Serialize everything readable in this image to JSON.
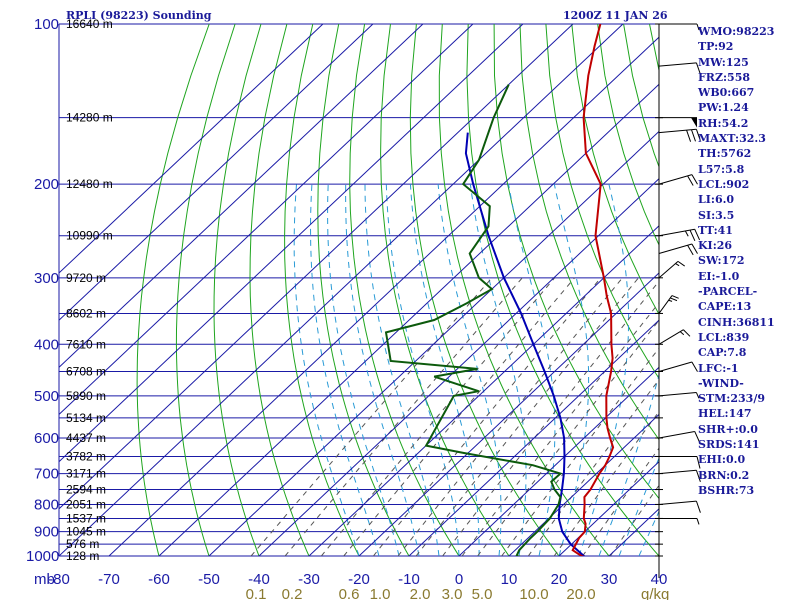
{
  "header": {
    "station": "RPLI (98223) Sounding",
    "time": "1200Z 11 JAN 26"
  },
  "colors": {
    "isobar": "#1a1aa6",
    "isotherm": "#1a1aa6",
    "dry_adiabat": "#1fa51f",
    "moist_adiabat": "#2a9bd6",
    "mixing_ratio": "#555555",
    "temperature": "#c00000",
    "dewpoint": "#0c5a0c",
    "parcel": "#0000b4",
    "wind": "#000000"
  },
  "chart_data": {
    "type": "skew-t",
    "title": "RPLI (98223) Sounding",
    "xlabel": "mb",
    "ylabel": "",
    "pressure_axis_mb": [
      100,
      200,
      300,
      400,
      500,
      600,
      700,
      800,
      900,
      1000
    ],
    "pressure_labels": [
      "100",
      "200",
      "300",
      "400",
      "500",
      "600",
      "700",
      "800",
      "900",
      "1000"
    ],
    "x_unit_label": "mb",
    "temperature_ticks_c": [
      -80,
      -70,
      -60,
      -50,
      -40,
      -30,
      -20,
      -10,
      0,
      10,
      20,
      30,
      40
    ],
    "temperature_labels": [
      "-80",
      "-70",
      "-60",
      "-50",
      "-40",
      "-30",
      "-20",
      "-10",
      "0",
      "10",
      "20",
      "30",
      "40"
    ],
    "mixing_ratio_labels": [
      "0.1",
      "0.2",
      "0.6",
      "1.0",
      "2.0",
      "3.0",
      "5.0",
      "10.0",
      "20.0"
    ],
    "mixing_ratio_unit": "g/kg",
    "heights": [
      {
        "p": 100,
        "label": "16640 m"
      },
      {
        "p": 150,
        "label": "14280 m"
      },
      {
        "p": 200,
        "label": "12480 m"
      },
      {
        "p": 250,
        "label": "10990 m"
      },
      {
        "p": 300,
        "label": "9720 m"
      },
      {
        "p": 350,
        "label": "8602 m"
      },
      {
        "p": 400,
        "label": "7610 m"
      },
      {
        "p": 450,
        "label": "6708 m"
      },
      {
        "p": 500,
        "label": "5890 m"
      },
      {
        "p": 550,
        "label": "5134 m"
      },
      {
        "p": 600,
        "label": "4437 m"
      },
      {
        "p": 650,
        "label": "3782 m"
      },
      {
        "p": 700,
        "label": "3171 m"
      },
      {
        "p": 750,
        "label": "2594 m"
      },
      {
        "p": 800,
        "label": "2051 m"
      },
      {
        "p": 850,
        "label": "1537 m"
      },
      {
        "p": 900,
        "label": "1045 m"
      },
      {
        "p": 950,
        "label": "576 m"
      },
      {
        "p": 1000,
        "label": "128 m"
      }
    ],
    "temperature_profile": [
      {
        "p": 1006,
        "t": 25.6
      },
      {
        "p": 1000,
        "t": 24.5
      },
      {
        "p": 975,
        "t": 21.5
      },
      {
        "p": 925,
        "t": 20.2
      },
      {
        "p": 900,
        "t": 20.0
      },
      {
        "p": 870,
        "t": 18.5
      },
      {
        "p": 850,
        "t": 17.0
      },
      {
        "p": 800,
        "t": 14.2
      },
      {
        "p": 775,
        "t": 12.6
      },
      {
        "p": 750,
        "t": 12.2
      },
      {
        "p": 700,
        "t": 10.6
      },
      {
        "p": 675,
        "t": 10.0
      },
      {
        "p": 650,
        "t": 9.0
      },
      {
        "p": 625,
        "t": 7.8
      },
      {
        "p": 600,
        "t": 5.2
      },
      {
        "p": 575,
        "t": 2.6
      },
      {
        "p": 550,
        "t": 0.2
      },
      {
        "p": 500,
        "t": -4.5
      },
      {
        "p": 450,
        "t": -8.7
      },
      {
        "p": 425,
        "t": -11.2
      },
      {
        "p": 400,
        "t": -14.4
      },
      {
        "p": 350,
        "t": -21.0
      },
      {
        "p": 325,
        "t": -25.5
      },
      {
        "p": 300,
        "t": -30.0
      },
      {
        "p": 250,
        "t": -40.6
      },
      {
        "p": 200,
        "t": -50.5
      },
      {
        "p": 175,
        "t": -60.0
      },
      {
        "p": 150,
        "t": -68.0
      },
      {
        "p": 125,
        "t": -76.0
      },
      {
        "p": 110,
        "t": -81.0
      },
      {
        "p": 100,
        "t": -84.5
      }
    ],
    "dewpoint_profile": [
      {
        "p": 1006,
        "td": 13.2
      },
      {
        "p": 1000,
        "td": 11.5
      },
      {
        "p": 975,
        "td": 10.8
      },
      {
        "p": 925,
        "td": 10.5
      },
      {
        "p": 900,
        "td": 10.5
      },
      {
        "p": 850,
        "td": 10.2
      },
      {
        "p": 800,
        "td": 9.0
      },
      {
        "p": 775,
        "td": 7.8
      },
      {
        "p": 750,
        "td": 5.0
      },
      {
        "p": 725,
        "td": 2.7
      },
      {
        "p": 700,
        "td": 2.8
      },
      {
        "p": 675,
        "td": -4.5
      },
      {
        "p": 640,
        "td": -21.0
      },
      {
        "p": 620,
        "td": -30.0
      },
      {
        "p": 500,
        "td": -35.0
      },
      {
        "p": 490,
        "td": -31.0
      },
      {
        "p": 460,
        "td": -43.0
      },
      {
        "p": 445,
        "td": -36.0
      },
      {
        "p": 430,
        "td": -55.0
      },
      {
        "p": 380,
        "td": -62.0
      },
      {
        "p": 360,
        "td": -55.0
      },
      {
        "p": 335,
        "td": -52.0
      },
      {
        "p": 315,
        "td": -50.0
      },
      {
        "p": 300,
        "td": -55.0
      },
      {
        "p": 270,
        "td": -62.0
      },
      {
        "p": 240,
        "td": -64.0
      },
      {
        "p": 220,
        "td": -68.0
      },
      {
        "p": 200,
        "td": -78.0
      },
      {
        "p": 180,
        "td": -80.0
      },
      {
        "p": 150,
        "td": -86.0
      },
      {
        "p": 130,
        "td": -90.0
      }
    ],
    "parcel_profile": [
      {
        "p": 1006,
        "t": 25.6
      },
      {
        "p": 950,
        "t": 19.8
      },
      {
        "p": 900,
        "t": 15.5
      },
      {
        "p": 850,
        "t": 12.0
      },
      {
        "p": 800,
        "t": 9.2
      },
      {
        "p": 750,
        "t": 6.5
      },
      {
        "p": 700,
        "t": 3.5
      },
      {
        "p": 650,
        "t": 0.0
      },
      {
        "p": 600,
        "t": -4.0
      },
      {
        "p": 550,
        "t": -9.0
      },
      {
        "p": 500,
        "t": -15.0
      },
      {
        "p": 450,
        "t": -22.0
      },
      {
        "p": 400,
        "t": -30.0
      },
      {
        "p": 350,
        "t": -39.0
      },
      {
        "p": 300,
        "t": -50.0
      },
      {
        "p": 250,
        "t": -62.0
      },
      {
        "p": 200,
        "t": -76.0
      },
      {
        "p": 175,
        "t": -84.0
      },
      {
        "p": 160,
        "t": -88.0
      }
    ],
    "wind_barbs": [
      {
        "p": 100,
        "dir": 90,
        "kt": 5
      },
      {
        "p": 120,
        "dir": 80,
        "kt": 10
      },
      {
        "p": 150,
        "dir": 90,
        "kt": 50
      },
      {
        "p": 160,
        "dir": 80,
        "kt": 30
      },
      {
        "p": 200,
        "dir": 60,
        "kt": 20
      },
      {
        "p": 250,
        "dir": 70,
        "kt": 25
      },
      {
        "p": 270,
        "dir": 60,
        "kt": 20
      },
      {
        "p": 300,
        "dir": 30,
        "kt": 15
      },
      {
        "p": 350,
        "dir": 20,
        "kt": 25
      },
      {
        "p": 400,
        "dir": 40,
        "kt": 15
      },
      {
        "p": 450,
        "dir": 60,
        "kt": 10
      },
      {
        "p": 500,
        "dir": 80,
        "kt": 5
      },
      {
        "p": 600,
        "dir": 110,
        "kt": 10
      },
      {
        "p": 650,
        "dir": 90,
        "kt": 10
      },
      {
        "p": 700,
        "dir": 80,
        "kt": 10
      },
      {
        "p": 800,
        "dir": 80,
        "kt": 10
      },
      {
        "p": 850,
        "dir": 90,
        "kt": 5
      }
    ]
  },
  "indices": [
    "WMO:98223",
    "TP:92",
    "MW:125",
    "FRZ:558",
    "WB0:667",
    "PW:1.24",
    "RH:54.2",
    "MAXT:32.3",
    "TH:5762",
    "L57:5.8",
    "LCL:902",
    "LI:6.0",
    "SI:3.5",
    "TT:41",
    "KI:26",
    "SW:172",
    "EI:-1.0",
    "-PARCEL-",
    "CAPE:13",
    "CINH:36811",
    "LCL:839",
    "CAP:7.8",
    "LFC:-1",
    "-WIND-",
    "STM:233/9",
    "HEL:147",
    "SHR+:0.0",
    "SRDS:141",
    "EHI:0.0",
    "BRN:0.2",
    "BSHR:73"
  ]
}
